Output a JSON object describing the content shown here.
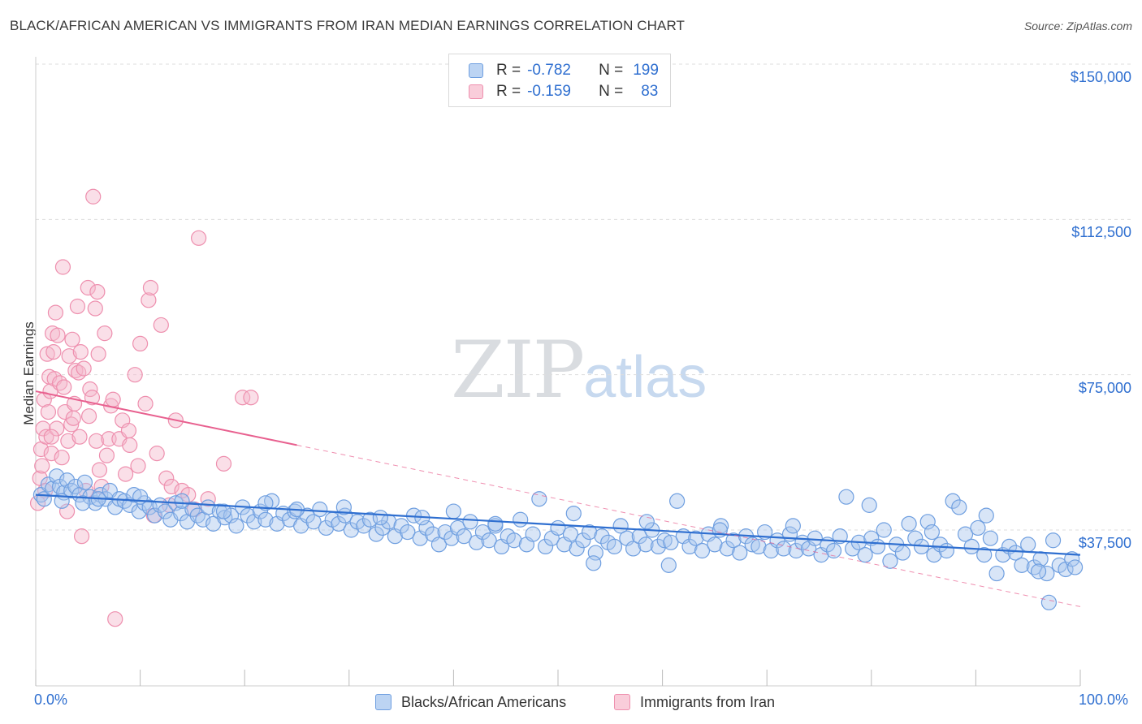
{
  "title": "BLACK/AFRICAN AMERICAN VS IMMIGRANTS FROM IRAN MEDIAN EARNINGS CORRELATION CHART",
  "source": "Source: ZipAtlas.com",
  "watermark": {
    "zip": "ZIP",
    "atlas": "atlas"
  },
  "legend_top": {
    "rows": [
      {
        "r_label": "R =",
        "r_value": "-0.782",
        "n_label": "N =",
        "n_value": "199",
        "color": "#a9c6ee"
      },
      {
        "r_label": "R =",
        "r_value": "-0.159",
        "n_label": "N =",
        "n_value": "83",
        "color": "#f5b8cb"
      }
    ]
  },
  "bottom_legend": {
    "series1": "Blacks/African Americans",
    "series2": "Immigrants from Iran"
  },
  "colors": {
    "blue_fill": "#a9c6ee",
    "blue_stroke": "#6f9fe0",
    "blue_line": "#2f6fd0",
    "pink_fill": "#f5b8cb",
    "pink_stroke": "#ee8fae",
    "pink_line": "#e8608f",
    "axis_label": "#2f6fd0",
    "grid": "#dddddd"
  },
  "chart_data": {
    "type": "scatter",
    "title": "BLACK/AFRICAN AMERICAN VS IMMIGRANTS FROM IRAN MEDIAN EARNINGS CORRELATION CHART",
    "xlabel": "",
    "ylabel": "Median Earnings",
    "xlim": [
      0,
      100
    ],
    "ylim": [
      0,
      155000
    ],
    "x_tick_labels": [
      "0.0%",
      "100.0%"
    ],
    "y_ticks": [
      37500,
      75000,
      112500,
      150000
    ],
    "y_tick_labels": [
      "$37,500",
      "$75,000",
      "$112,500",
      "$150,000"
    ],
    "grid": true,
    "series": [
      {
        "name": "Blacks/African Americans",
        "r": -0.782,
        "n": 199,
        "trend": {
          "x0": 0,
          "y0": 46000,
          "x1": 100,
          "y1": 31500
        },
        "points": [
          [
            0.5,
            46000
          ],
          [
            0.8,
            45000
          ],
          [
            1.2,
            48500
          ],
          [
            1.6,
            47500
          ],
          [
            2.0,
            50500
          ],
          [
            2.3,
            48000
          ],
          [
            2.7,
            46500
          ],
          [
            3.0,
            49500
          ],
          [
            3.4,
            47000
          ],
          [
            3.8,
            48000
          ],
          [
            4.2,
            46000
          ],
          [
            4.7,
            49000
          ],
          [
            5.2,
            45500
          ],
          [
            5.7,
            44000
          ],
          [
            6.2,
            46000
          ],
          [
            6.7,
            45000
          ],
          [
            7.1,
            47000
          ],
          [
            7.6,
            43000
          ],
          [
            8.0,
            45000
          ],
          [
            8.5,
            44500
          ],
          [
            9.0,
            43500
          ],
          [
            9.4,
            46000
          ],
          [
            9.9,
            42000
          ],
          [
            10.4,
            44000
          ],
          [
            10.9,
            43000
          ],
          [
            11.4,
            41000
          ],
          [
            11.9,
            43500
          ],
          [
            12.4,
            42000
          ],
          [
            12.9,
            40000
          ],
          [
            13.4,
            44000
          ],
          [
            13.9,
            41500
          ],
          [
            14.5,
            39500
          ],
          [
            15.0,
            42500
          ],
          [
            15.5,
            41000
          ],
          [
            16.0,
            40000
          ],
          [
            16.5,
            43000
          ],
          [
            17.0,
            39000
          ],
          [
            17.6,
            42000
          ],
          [
            18.1,
            40500
          ],
          [
            18.7,
            41000
          ],
          [
            19.2,
            38500
          ],
          [
            19.8,
            43000
          ],
          [
            20.3,
            41000
          ],
          [
            20.9,
            39500
          ],
          [
            21.5,
            42000
          ],
          [
            22.0,
            40000
          ],
          [
            22.6,
            44500
          ],
          [
            23.1,
            39000
          ],
          [
            23.7,
            41500
          ],
          [
            24.3,
            40000
          ],
          [
            24.8,
            42000
          ],
          [
            25.4,
            38500
          ],
          [
            26.0,
            41000
          ],
          [
            26.6,
            39500
          ],
          [
            27.2,
            42500
          ],
          [
            27.8,
            38000
          ],
          [
            28.4,
            40000
          ],
          [
            29.0,
            39000
          ],
          [
            29.6,
            41000
          ],
          [
            30.2,
            37500
          ],
          [
            30.8,
            39500
          ],
          [
            31.4,
            38500
          ],
          [
            32.0,
            40000
          ],
          [
            32.6,
            36500
          ],
          [
            33.2,
            38000
          ],
          [
            33.8,
            39500
          ],
          [
            34.4,
            36000
          ],
          [
            35.0,
            38500
          ],
          [
            35.6,
            37000
          ],
          [
            36.2,
            41000
          ],
          [
            36.8,
            35500
          ],
          [
            37.4,
            38000
          ],
          [
            38.0,
            36500
          ],
          [
            38.6,
            34000
          ],
          [
            39.2,
            37000
          ],
          [
            39.8,
            35500
          ],
          [
            40.4,
            38000
          ],
          [
            41.0,
            36000
          ],
          [
            41.6,
            39500
          ],
          [
            42.2,
            34500
          ],
          [
            42.8,
            37000
          ],
          [
            43.4,
            35000
          ],
          [
            44.0,
            38500
          ],
          [
            44.6,
            33500
          ],
          [
            45.2,
            36000
          ],
          [
            45.8,
            35000
          ],
          [
            46.4,
            40000
          ],
          [
            47.0,
            34000
          ],
          [
            47.6,
            36500
          ],
          [
            48.2,
            45000
          ],
          [
            48.8,
            33500
          ],
          [
            49.4,
            35500
          ],
          [
            50.0,
            38000
          ],
          [
            50.6,
            34000
          ],
          [
            51.2,
            36500
          ],
          [
            51.8,
            33000
          ],
          [
            52.4,
            35000
          ],
          [
            53.0,
            37000
          ],
          [
            53.6,
            32000
          ],
          [
            54.2,
            36000
          ],
          [
            54.8,
            34500
          ],
          [
            55.4,
            33500
          ],
          [
            56.0,
            38500
          ],
          [
            56.6,
            35500
          ],
          [
            57.2,
            33000
          ],
          [
            57.8,
            36000
          ],
          [
            58.4,
            34000
          ],
          [
            59.0,
            37500
          ],
          [
            59.6,
            33500
          ],
          [
            60.2,
            35000
          ],
          [
            60.8,
            34500
          ],
          [
            61.4,
            44500
          ],
          [
            62.0,
            36000
          ],
          [
            62.6,
            33500
          ],
          [
            63.2,
            35500
          ],
          [
            63.8,
            32500
          ],
          [
            64.4,
            36500
          ],
          [
            65.0,
            34000
          ],
          [
            65.6,
            38500
          ],
          [
            66.2,
            33000
          ],
          [
            66.8,
            35000
          ],
          [
            67.4,
            32000
          ],
          [
            68.0,
            36000
          ],
          [
            68.6,
            34000
          ],
          [
            69.2,
            33500
          ],
          [
            69.8,
            37000
          ],
          [
            70.4,
            32500
          ],
          [
            71.0,
            35000
          ],
          [
            71.6,
            33000
          ],
          [
            72.2,
            36500
          ],
          [
            72.8,
            32500
          ],
          [
            73.4,
            34500
          ],
          [
            74.0,
            33000
          ],
          [
            74.6,
            35500
          ],
          [
            75.2,
            31500
          ],
          [
            75.8,
            34000
          ],
          [
            76.4,
            32500
          ],
          [
            77.0,
            36000
          ],
          [
            77.6,
            45500
          ],
          [
            78.2,
            33000
          ],
          [
            78.8,
            34500
          ],
          [
            79.4,
            31500
          ],
          [
            80.0,
            35500
          ],
          [
            80.6,
            33500
          ],
          [
            81.2,
            37500
          ],
          [
            81.8,
            30000
          ],
          [
            82.4,
            34000
          ],
          [
            83.0,
            32000
          ],
          [
            83.6,
            39000
          ],
          [
            84.2,
            35500
          ],
          [
            84.8,
            33500
          ],
          [
            85.4,
            39500
          ],
          [
            86.0,
            31500
          ],
          [
            86.6,
            34000
          ],
          [
            87.2,
            32500
          ],
          [
            87.8,
            44500
          ],
          [
            88.4,
            43000
          ],
          [
            89.0,
            36500
          ],
          [
            89.6,
            33500
          ],
          [
            90.2,
            38000
          ],
          [
            90.8,
            31500
          ],
          [
            91.4,
            35500
          ],
          [
            92.0,
            27000
          ],
          [
            92.6,
            31500
          ],
          [
            93.2,
            33500
          ],
          [
            93.8,
            32000
          ],
          [
            94.4,
            29000
          ],
          [
            95.0,
            34000
          ],
          [
            95.6,
            28500
          ],
          [
            96.2,
            30500
          ],
          [
            96.8,
            27000
          ],
          [
            97.4,
            35000
          ],
          [
            98.0,
            29000
          ],
          [
            98.6,
            28000
          ],
          [
            99.2,
            30500
          ],
          [
            99.5,
            28500
          ],
          [
            4.5,
            44000
          ],
          [
            14.0,
            44500
          ],
          [
            22.0,
            44000
          ],
          [
            29.5,
            43000
          ],
          [
            37.0,
            40500
          ],
          [
            44.0,
            39000
          ],
          [
            51.5,
            41500
          ],
          [
            58.5,
            39500
          ],
          [
            65.5,
            37500
          ],
          [
            72.5,
            38500
          ],
          [
            79.8,
            43500
          ],
          [
            85.8,
            37000
          ],
          [
            91.0,
            41000
          ],
          [
            96.0,
            27500
          ],
          [
            97.0,
            20000
          ],
          [
            53.4,
            29500
          ],
          [
            60.6,
            29000
          ],
          [
            40.0,
            42000
          ],
          [
            33.0,
            40500
          ],
          [
            25.0,
            42500
          ],
          [
            18.0,
            42000
          ],
          [
            10.0,
            45500
          ],
          [
            6.0,
            45000
          ],
          [
            2.5,
            44500
          ]
        ]
      },
      {
        "name": "Immigrants from Iran",
        "r": -0.159,
        "n": 83,
        "trend_solid": {
          "x0": 0,
          "y0": 71000,
          "x1": 25,
          "y1": 58000
        },
        "trend_dashed": {
          "x0": 25,
          "y0": 58000,
          "x1": 100,
          "y1": 19000
        },
        "points": [
          [
            0.2,
            44000
          ],
          [
            0.4,
            50000
          ],
          [
            0.5,
            57000
          ],
          [
            0.6,
            53000
          ],
          [
            0.7,
            62000
          ],
          [
            0.8,
            69000
          ],
          [
            0.9,
            47000
          ],
          [
            1.0,
            60000
          ],
          [
            1.1,
            80000
          ],
          [
            1.2,
            66000
          ],
          [
            1.3,
            74500
          ],
          [
            1.4,
            71000
          ],
          [
            1.5,
            56000
          ],
          [
            1.6,
            85000
          ],
          [
            1.7,
            80500
          ],
          [
            1.8,
            74000
          ],
          [
            1.9,
            90000
          ],
          [
            2.0,
            62000
          ],
          [
            2.1,
            84500
          ],
          [
            2.3,
            73000
          ],
          [
            2.5,
            55000
          ],
          [
            2.6,
            101000
          ],
          [
            2.8,
            66000
          ],
          [
            3.0,
            42000
          ],
          [
            3.1,
            59000
          ],
          [
            3.2,
            79500
          ],
          [
            3.4,
            63000
          ],
          [
            3.5,
            83500
          ],
          [
            3.7,
            68000
          ],
          [
            3.8,
            76000
          ],
          [
            4.0,
            91500
          ],
          [
            4.1,
            75500
          ],
          [
            4.2,
            60000
          ],
          [
            4.3,
            80500
          ],
          [
            4.4,
            36000
          ],
          [
            4.6,
            76500
          ],
          [
            4.8,
            47000
          ],
          [
            5.0,
            96000
          ],
          [
            5.1,
            65000
          ],
          [
            5.2,
            71500
          ],
          [
            5.4,
            69500
          ],
          [
            5.5,
            118000
          ],
          [
            5.7,
            91000
          ],
          [
            5.8,
            59000
          ],
          [
            5.9,
            95000
          ],
          [
            6.0,
            80000
          ],
          [
            6.3,
            48000
          ],
          [
            6.6,
            85000
          ],
          [
            6.8,
            55500
          ],
          [
            7.0,
            59500
          ],
          [
            7.2,
            67500
          ],
          [
            7.4,
            69000
          ],
          [
            7.6,
            16000
          ],
          [
            8.0,
            59500
          ],
          [
            8.3,
            64000
          ],
          [
            8.6,
            51000
          ],
          [
            9.0,
            58000
          ],
          [
            9.5,
            75000
          ],
          [
            9.8,
            53000
          ],
          [
            10.0,
            82500
          ],
          [
            10.5,
            68000
          ],
          [
            10.8,
            93000
          ],
          [
            11.0,
            96000
          ],
          [
            11.3,
            41000
          ],
          [
            11.6,
            56000
          ],
          [
            12.0,
            87000
          ],
          [
            12.5,
            50000
          ],
          [
            12.8,
            43500
          ],
          [
            13.0,
            48000
          ],
          [
            13.4,
            64000
          ],
          [
            14.0,
            47000
          ],
          [
            14.6,
            46000
          ],
          [
            15.2,
            42500
          ],
          [
            15.6,
            108000
          ],
          [
            16.5,
            45000
          ],
          [
            18.0,
            53500
          ],
          [
            19.8,
            69500
          ],
          [
            20.6,
            69500
          ],
          [
            3.6,
            64500
          ],
          [
            1.5,
            60000
          ],
          [
            2.7,
            72000
          ],
          [
            6.1,
            52000
          ],
          [
            8.9,
            61500
          ]
        ]
      }
    ]
  }
}
